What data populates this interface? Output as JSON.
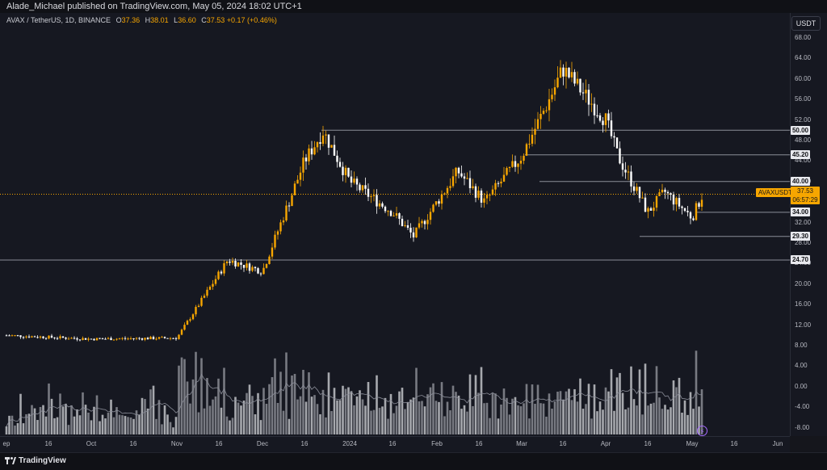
{
  "header": {
    "published_text": "Alade_Michael published on TradingView.com, May 05, 2024 18:02 UTC+1"
  },
  "legend": {
    "symbol": "AVAX / TetherUS, 1D, BINANCE",
    "open_label": "O",
    "open": "37.36",
    "high_label": "H",
    "high": "38.01",
    "low_label": "L",
    "low": "36.60",
    "close_label": "C",
    "close": "37.53",
    "change": "+0.17 (+0.46%)"
  },
  "currency_button": "USDT",
  "price_axis": {
    "ticks": [
      "68.00",
      "64.00",
      "60.00",
      "56.00",
      "52.00",
      "48.00",
      "44.00",
      "40.00",
      "36.00",
      "32.00",
      "28.00",
      "24.00",
      "20.00",
      "16.00",
      "12.00",
      "8.00",
      "4.00",
      "0.00",
      "-4.00",
      "-8.00"
    ]
  },
  "levels": [
    "50.00",
    "45.20",
    "40.00",
    "34.00",
    "29.30",
    "24.70"
  ],
  "current_price": {
    "symbol": "AVAXUSDT",
    "price": "37.53",
    "countdown": "06:57:29"
  },
  "time_axis": {
    "labels": [
      "ep",
      "16",
      "Oct",
      "16",
      "Nov",
      "16",
      "Dec",
      "16",
      "2024",
      "16",
      "Feb",
      "16",
      "Mar",
      "16",
      "Apr",
      "16",
      "May",
      "16",
      "Jun"
    ]
  },
  "footer": {
    "brand": "TradingView"
  },
  "colors": {
    "up": "#f7a600",
    "down": "#ffffff",
    "level_line": "#8a8d98",
    "background": "#161821"
  },
  "chart_data": {
    "type": "candlestick",
    "symbol": "AVAX / TetherUS",
    "interval": "1D",
    "exchange": "BINANCE",
    "ylim": [
      -10,
      70
    ],
    "horizontal_levels": [
      50.0,
      45.2,
      40.0,
      34.0,
      29.3,
      24.7
    ],
    "last_close": 37.53,
    "close_path": [
      [
        "Sep",
        10.0
      ],
      [
        "Oct",
        9.3
      ],
      [
        "Nov",
        9.5
      ],
      [
        "Nov 16",
        22.0
      ],
      [
        "Nov 20",
        24.7
      ],
      [
        "Dec",
        22.5
      ],
      [
        "Dec 16",
        44.0
      ],
      [
        "Dec 24",
        49.8
      ],
      [
        "2024",
        40.0
      ],
      [
        "Jan 16",
        34.0
      ],
      [
        "Jan 24",
        29.3
      ],
      [
        "Feb",
        36.0
      ],
      [
        "Feb 10",
        42.0
      ],
      [
        "Feb 20",
        36.0
      ],
      [
        "Mar",
        45.0
      ],
      [
        "Mar 10",
        56.0
      ],
      [
        "Mar 16",
        62.0
      ],
      [
        "Apr",
        52.0
      ],
      [
        "Apr 8",
        45.0
      ],
      [
        "Apr 16",
        34.0
      ],
      [
        "Apr 24",
        38.0
      ],
      [
        "May",
        33.0
      ],
      [
        "May 5",
        37.53
      ]
    ]
  }
}
